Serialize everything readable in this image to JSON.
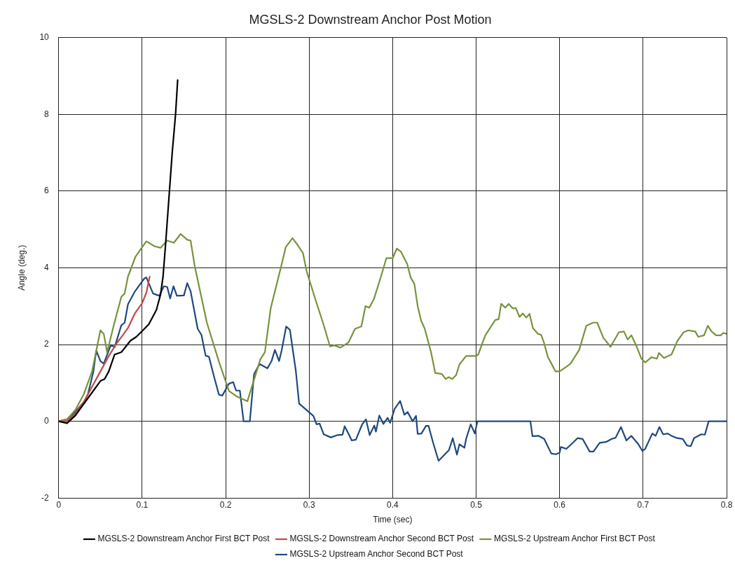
{
  "chart_data": {
    "type": "line",
    "title": "MGSLS-2 Downstream Anchor Post Motion",
    "xlabel": "Time (sec)",
    "ylabel": "Angle (deg.)",
    "xlim": [
      0,
      0.8
    ],
    "xticks": [
      0,
      0.1,
      0.2,
      0.3,
      0.4,
      0.5,
      0.6,
      0.7,
      0.8
    ],
    "ylim": [
      -2,
      10
    ],
    "yticks": [
      -2,
      0,
      2,
      4,
      6,
      8,
      10
    ],
    "grid": true,
    "legend": "bottom",
    "marker": "none",
    "line_style": "solid",
    "series": [
      {
        "name": "MGSLS-2 Downstream Anchor First BCT Post",
        "color": "#000000",
        "x": [
          0,
          0.01,
          0.02,
          0.03,
          0.04,
          0.05,
          0.055,
          0.06,
          0.067,
          0.075,
          0.086,
          0.093,
          0.1,
          0.108,
          0.117,
          0.122,
          0.125,
          0.128,
          0.132,
          0.136,
          0.14,
          0.1425
        ],
        "values": [
          0,
          -0.05,
          0.15,
          0.45,
          0.75,
          1.05,
          1.1,
          1.3,
          1.74,
          1.8,
          2.1,
          2.2,
          2.35,
          2.53,
          2.9,
          3.3,
          3.77,
          4.6,
          5.8,
          7.0,
          8.0,
          8.89
        ]
      },
      {
        "name": "MGSLS-2 Downstream Anchor Second BCT Post",
        "color": "#be4b48",
        "x": [
          0,
          0.01,
          0.02,
          0.03,
          0.04,
          0.05,
          0.06,
          0.07,
          0.077,
          0.083,
          0.0915,
          0.1,
          0.105,
          0.109
        ],
        "values": [
          0,
          0,
          0.2,
          0.5,
          0.9,
          1.3,
          1.7,
          2.05,
          2.25,
          2.43,
          2.82,
          3.08,
          3.35,
          3.77
        ]
      },
      {
        "name": "MGSLS-2 Upstream Anchor First BCT Post",
        "color": "#77933c",
        "x": [
          0,
          0.01,
          0.02,
          0.03,
          0.04,
          0.05,
          0.054,
          0.058,
          0.066,
          0.075,
          0.079,
          0.083,
          0.092,
          0.1,
          0.105,
          0.115,
          0.122,
          0.13,
          0.138,
          0.146,
          0.154,
          0.158,
          0.163,
          0.1775,
          0.192,
          0.204,
          0.213,
          0.226,
          0.2415,
          0.247,
          0.254,
          0.2665,
          0.272,
          0.28,
          0.286,
          0.2925,
          0.297,
          0.308,
          0.3165,
          0.325,
          0.33,
          0.3375,
          0.347,
          0.355,
          0.3625,
          0.3675,
          0.372,
          0.3775,
          0.386,
          0.3925,
          0.4,
          0.405,
          0.41,
          0.4175,
          0.4215,
          0.426,
          0.43,
          0.434,
          0.4385,
          0.446,
          0.451,
          0.459,
          0.4635,
          0.467,
          0.4715,
          0.476,
          0.48,
          0.488,
          0.5,
          0.5025,
          0.511,
          0.523,
          0.527,
          0.53,
          0.535,
          0.539,
          0.544,
          0.5475,
          0.552,
          0.556,
          0.56,
          0.564,
          0.568,
          0.574,
          0.578,
          0.5815,
          0.586,
          0.59,
          0.595,
          0.6,
          0.608,
          0.613,
          0.6235,
          0.632,
          0.64,
          0.645,
          0.6525,
          0.661,
          0.671,
          0.677,
          0.6815,
          0.686,
          0.692,
          0.698,
          0.7025,
          0.71,
          0.7165,
          0.719,
          0.725,
          0.734,
          0.741,
          0.7485,
          0.754,
          0.7625,
          0.766,
          0.773,
          0.7775,
          0.782,
          0.7875,
          0.793,
          0.796,
          0.8
        ],
        "values": [
          0,
          0.05,
          0.3,
          0.7,
          1.3,
          2.37,
          2.28,
          1.8,
          2.5,
          3.24,
          3.33,
          3.77,
          4.29,
          4.54,
          4.69,
          4.56,
          4.52,
          4.71,
          4.65,
          4.88,
          4.73,
          4.71,
          4.04,
          2.57,
          1.55,
          0.79,
          0.65,
          0.52,
          1.61,
          1.8,
          2.95,
          4.04,
          4.54,
          4.77,
          4.6,
          4.39,
          3.91,
          3.14,
          2.57,
          1.95,
          1.98,
          1.92,
          2.05,
          2.41,
          2.47,
          3.0,
          2.96,
          3.18,
          3.77,
          4.25,
          4.25,
          4.5,
          4.42,
          4.1,
          3.75,
          3.58,
          3.0,
          2.63,
          2.41,
          1.8,
          1.26,
          1.23,
          1.1,
          1.15,
          1.1,
          1.2,
          1.48,
          1.7,
          1.7,
          1.74,
          2.24,
          2.64,
          2.66,
          3.06,
          2.96,
          3.06,
          2.94,
          2.95,
          2.72,
          2.81,
          2.7,
          2.8,
          2.43,
          2.28,
          2.25,
          2.03,
          1.67,
          1.51,
          1.3,
          1.3,
          1.42,
          1.5,
          1.86,
          2.49,
          2.57,
          2.57,
          2.17,
          1.94,
          2.32,
          2.34,
          2.13,
          2.24,
          1.96,
          1.63,
          1.53,
          1.67,
          1.63,
          1.78,
          1.65,
          1.74,
          2.09,
          2.32,
          2.37,
          2.34,
          2.2,
          2.24,
          2.49,
          2.34,
          2.24,
          2.24,
          2.3,
          2.28
        ]
      },
      {
        "name": "MGSLS-2 Upstream Anchor Second BCT Post",
        "color": "#1f497d",
        "x": [
          0,
          0.01,
          0.02,
          0.03,
          0.035,
          0.0415,
          0.045,
          0.05,
          0.054,
          0.0625,
          0.067,
          0.075,
          0.079,
          0.083,
          0.0915,
          0.1025,
          0.105,
          0.113,
          0.1205,
          0.126,
          0.13,
          0.1335,
          0.1375,
          0.1415,
          0.15,
          0.154,
          0.158,
          0.1665,
          0.171,
          0.176,
          0.18,
          0.186,
          0.192,
          0.196,
          0.204,
          0.209,
          0.2125,
          0.217,
          0.2215,
          0.229,
          0.234,
          0.239,
          0.241,
          0.25,
          0.255,
          0.259,
          0.264,
          0.267,
          0.2725,
          0.277,
          0.284,
          0.288,
          0.305,
          0.309,
          0.3125,
          0.3175,
          0.326,
          0.334,
          0.34,
          0.3425,
          0.3475,
          0.351,
          0.356,
          0.3635,
          0.368,
          0.3725,
          0.378,
          0.38,
          0.384,
          0.389,
          0.394,
          0.397,
          0.4025,
          0.409,
          0.414,
          0.418,
          0.424,
          0.428,
          0.43,
          0.4345,
          0.44,
          0.443,
          0.4485,
          0.455,
          0.4675,
          0.472,
          0.477,
          0.48,
          0.486,
          0.488,
          0.4935,
          0.4985,
          0.5015,
          0.565,
          0.5675,
          0.575,
          0.5815,
          0.59,
          0.5955,
          0.6,
          0.6015,
          0.608,
          0.6135,
          0.6215,
          0.6275,
          0.636,
          0.6405,
          0.648,
          0.6555,
          0.6625,
          0.667,
          0.6735,
          0.68,
          0.686,
          0.694,
          0.699,
          0.7025,
          0.711,
          0.715,
          0.7195,
          0.724,
          0.7295,
          0.734,
          0.741,
          0.7475,
          0.7525,
          0.757,
          0.761,
          0.7695,
          0.774,
          0.7785,
          0.8
        ],
        "values": [
          0,
          0.05,
          0.25,
          0.5,
          0.7,
          1.29,
          1.84,
          1.57,
          1.5,
          1.99,
          1.93,
          2.5,
          2.57,
          3.05,
          3.39,
          3.72,
          3.75,
          3.33,
          3.27,
          3.52,
          3.5,
          3.2,
          3.52,
          3.27,
          3.28,
          3.6,
          3.39,
          2.41,
          2.25,
          1.71,
          1.68,
          1.17,
          0.69,
          0.67,
          0.98,
          1.02,
          0.8,
          0.8,
          0,
          0,
          1.23,
          1.43,
          1.49,
          1.38,
          1.57,
          1.86,
          1.57,
          1.84,
          2.47,
          2.38,
          1.32,
          0.46,
          0.14,
          -0.08,
          -0.06,
          -0.34,
          -0.42,
          -0.36,
          -0.35,
          -0.13,
          -0.34,
          -0.5,
          -0.48,
          -0.08,
          0.05,
          -0.36,
          -0.11,
          -0.27,
          0.15,
          -0.07,
          0.09,
          -0.04,
          0.33,
          0.53,
          0.17,
          0.24,
          0,
          0.14,
          -0.33,
          -0.32,
          -0.12,
          -0.12,
          -0.56,
          -1.03,
          -0.75,
          -0.44,
          -0.87,
          -0.6,
          -0.69,
          -0.46,
          -0.08,
          -0.32,
          0,
          0,
          -0.39,
          -0.38,
          -0.46,
          -0.84,
          -0.86,
          -0.82,
          -0.67,
          -0.72,
          -0.61,
          -0.44,
          -0.46,
          -0.79,
          -0.79,
          -0.56,
          -0.54,
          -0.46,
          -0.43,
          -0.15,
          -0.5,
          -0.38,
          -0.59,
          -0.77,
          -0.72,
          -0.32,
          -0.38,
          -0.15,
          -0.34,
          -0.32,
          -0.38,
          -0.44,
          -0.46,
          -0.63,
          -0.65,
          -0.44,
          -0.34,
          -0.35,
          0,
          0
        ]
      }
    ]
  }
}
